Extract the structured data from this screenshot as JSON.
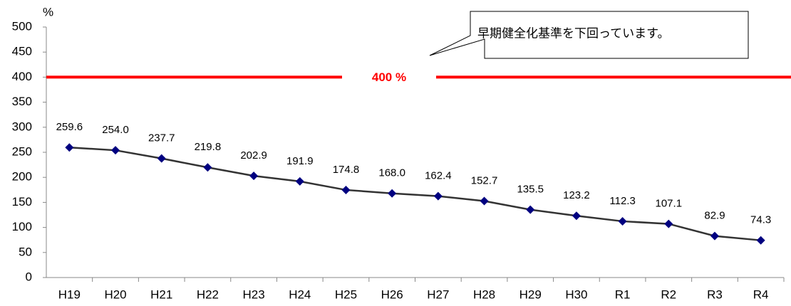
{
  "chart_data": {
    "type": "line",
    "y_unit": "%",
    "categories": [
      "H19",
      "H20",
      "H21",
      "H22",
      "H23",
      "H24",
      "H25",
      "H26",
      "H27",
      "H28",
      "H29",
      "H30",
      "R1",
      "R2",
      "R3",
      "R4"
    ],
    "series": [
      {
        "name": null,
        "color": "#333333",
        "marker_color": "#000080",
        "values": [
          259.6,
          254,
          237.7,
          219.8,
          202.9,
          191.9,
          174.8,
          168,
          162.4,
          152.7,
          135.5,
          123.2,
          112.3,
          107.1,
          82.9,
          74.3
        ],
        "value_labels": [
          "259.6",
          "254.0",
          "237.7",
          "219.8",
          "202.9",
          "191.9",
          "174.8",
          "168.0",
          "162.4",
          "152.7",
          "135.5",
          "123.2",
          "112.3",
          "107.1",
          "82.9",
          "74.3"
        ]
      }
    ],
    "ylim": [
      0,
      500
    ],
    "yticks": [
      0,
      50,
      100,
      150,
      200,
      250,
      300,
      350,
      400,
      450,
      500
    ],
    "reference_line": {
      "value": 400,
      "label": "400 %",
      "color": "#ff0000"
    },
    "annotation": "早期健全化基準を下回っています。"
  }
}
